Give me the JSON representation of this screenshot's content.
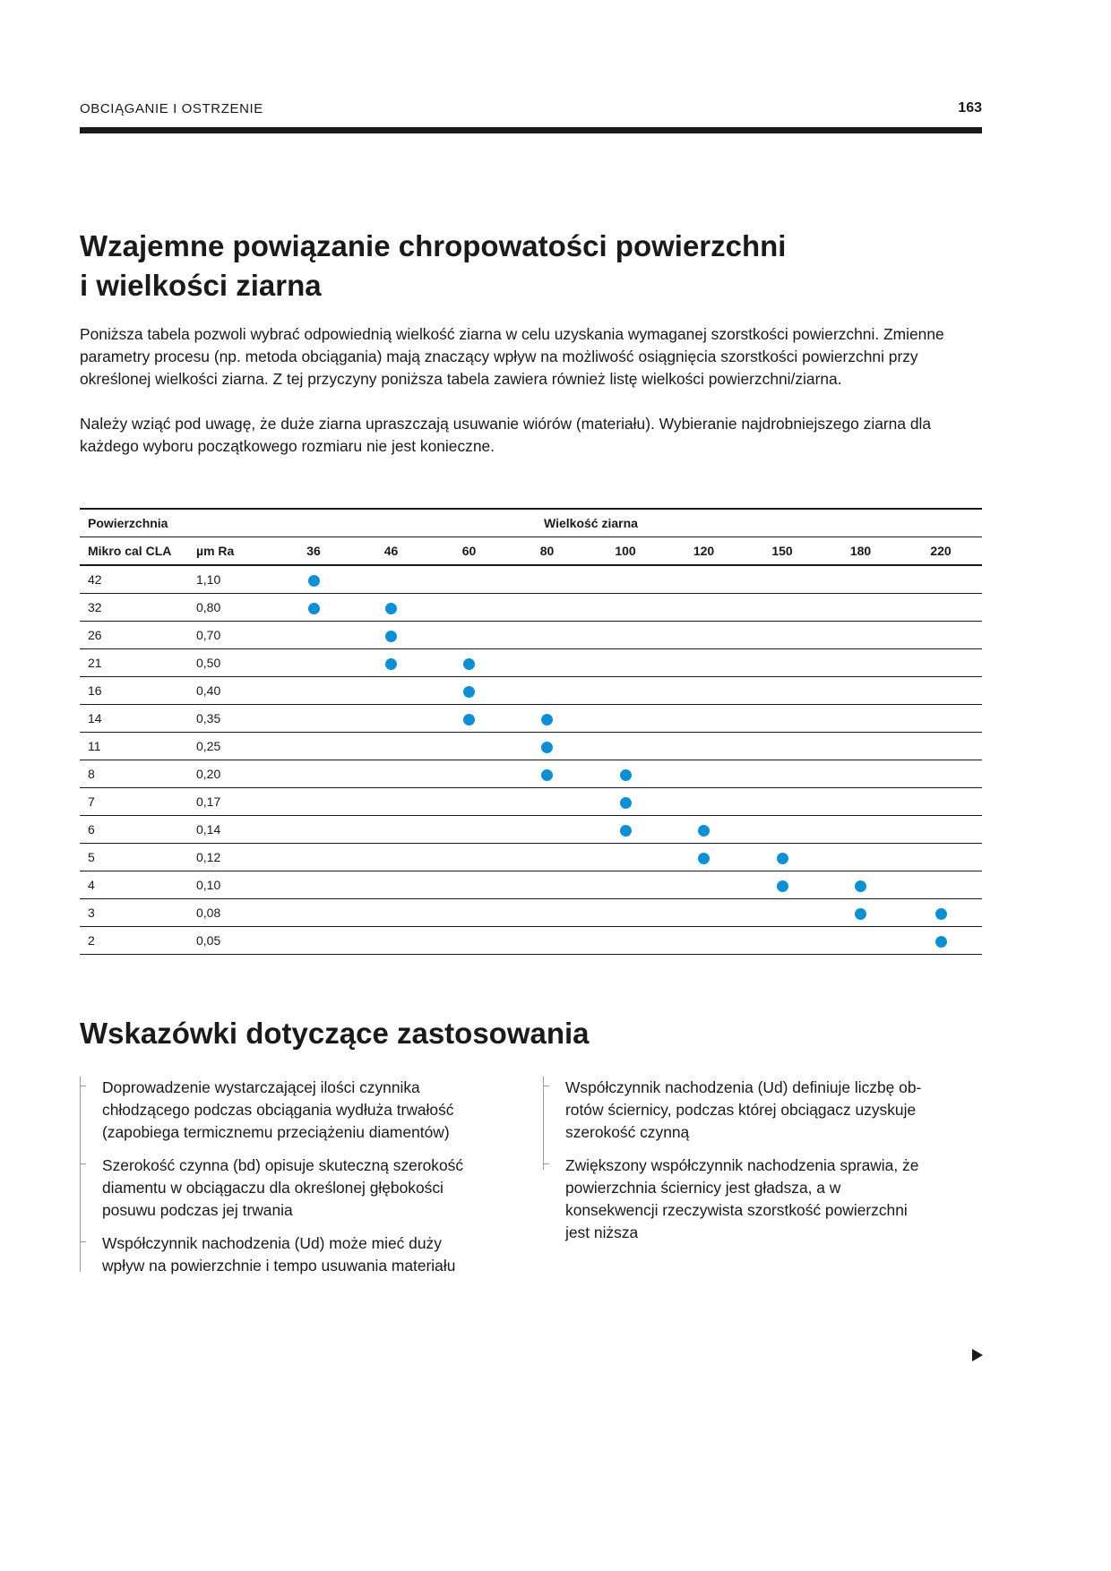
{
  "header": {
    "section_title": "OBCIĄGANIE I OSTRZENIE",
    "page_number": "163"
  },
  "title": {
    "line1": "Wzajemne powiązanie chropowatości powierzchni",
    "line2": "i wielkości ziarna"
  },
  "intro": {
    "p1": "Poniższa tabela pozwoli wybrać odpowiednią wielkość ziarna w celu uzyskania wymaganej szorstkości powierzchni. Zmienne parametry procesu (np. metoda obciągania) mają znaczący wpływ na możliwość osiągnięcia szorstkości powierzchni przy określonej wielkości ziarna. Z tej przyczyny poniższa tabela zawiera również listę wielkości powierzchni/ziarna.",
    "p2": "Należy wziąć pod uwagę, że duże ziarna upraszczają usuwanie wiórów (materiału). Wybieranie najdrobniejszego ziarna dla każdego wyboru początkowego rozmiaru nie jest konieczne."
  },
  "table": {
    "group_surface": "Powierzchnia",
    "group_grain": "Wielkość ziarna",
    "col_cla": "Mikro cal CLA",
    "col_ra": "µm Ra",
    "grits": [
      "36",
      "46",
      "60",
      "80",
      "100",
      "120",
      "150",
      "180",
      "220"
    ],
    "dot_color": "#0e8fd3",
    "rows": [
      {
        "cla": "42",
        "ra": "1,10",
        "grits": [
          "36"
        ]
      },
      {
        "cla": "32",
        "ra": "0,80",
        "grits": [
          "36",
          "46"
        ]
      },
      {
        "cla": "26",
        "ra": "0,70",
        "grits": [
          "46"
        ]
      },
      {
        "cla": "21",
        "ra": "0,50",
        "grits": [
          "46",
          "60"
        ]
      },
      {
        "cla": "16",
        "ra": "0,40",
        "grits": [
          "60"
        ]
      },
      {
        "cla": "14",
        "ra": "0,35",
        "grits": [
          "60",
          "80"
        ]
      },
      {
        "cla": "11",
        "ra": "0,25",
        "grits": [
          "80"
        ]
      },
      {
        "cla": "8",
        "ra": "0,20",
        "grits": [
          "80",
          "100"
        ]
      },
      {
        "cla": "7",
        "ra": "0,17",
        "grits": [
          "100"
        ]
      },
      {
        "cla": "6",
        "ra": "0,14",
        "grits": [
          "100",
          "120"
        ]
      },
      {
        "cla": "5",
        "ra": "0,12",
        "grits": [
          "120",
          "150"
        ]
      },
      {
        "cla": "4",
        "ra": "0,10",
        "grits": [
          "150",
          "180"
        ]
      },
      {
        "cla": "3",
        "ra": "0,08",
        "grits": [
          "180",
          "220"
        ]
      },
      {
        "cla": "2",
        "ra": "0,05",
        "grits": [
          "220"
        ]
      }
    ]
  },
  "tips": {
    "title": "Wskazówki dotyczące zastosowania",
    "left": [
      "Doprowadzenie wystarczającej ilości czynnika chłodzącego podczas obciągania wydłuża trwałość (zapobiega termicznemu przeciążeniu diamentów)",
      "Szerokość czynna (bd) opisuje skuteczną szerokość diamentu w obciągaczu dla określonej głębokości posuwu podczas jej trwania",
      "Współczynnik nachodzenia (Ud) może mieć duży wpływ na powierzchnie i tempo usuwania materiału"
    ],
    "right": [
      "Współczynnik nachodzenia (Ud) definiuje liczbę ob-rotów ściernicy, podczas której obciągacz uzyskuje szerokość czynną",
      "Zwiększony współczynnik nachodzenia sprawia, że powierzchnia ściernicy jest gładsza, a w konsekwencji rzeczywista szorstkość powierzchni jest niższa"
    ]
  },
  "nav": {
    "next_icon": "triangle-right-icon"
  }
}
